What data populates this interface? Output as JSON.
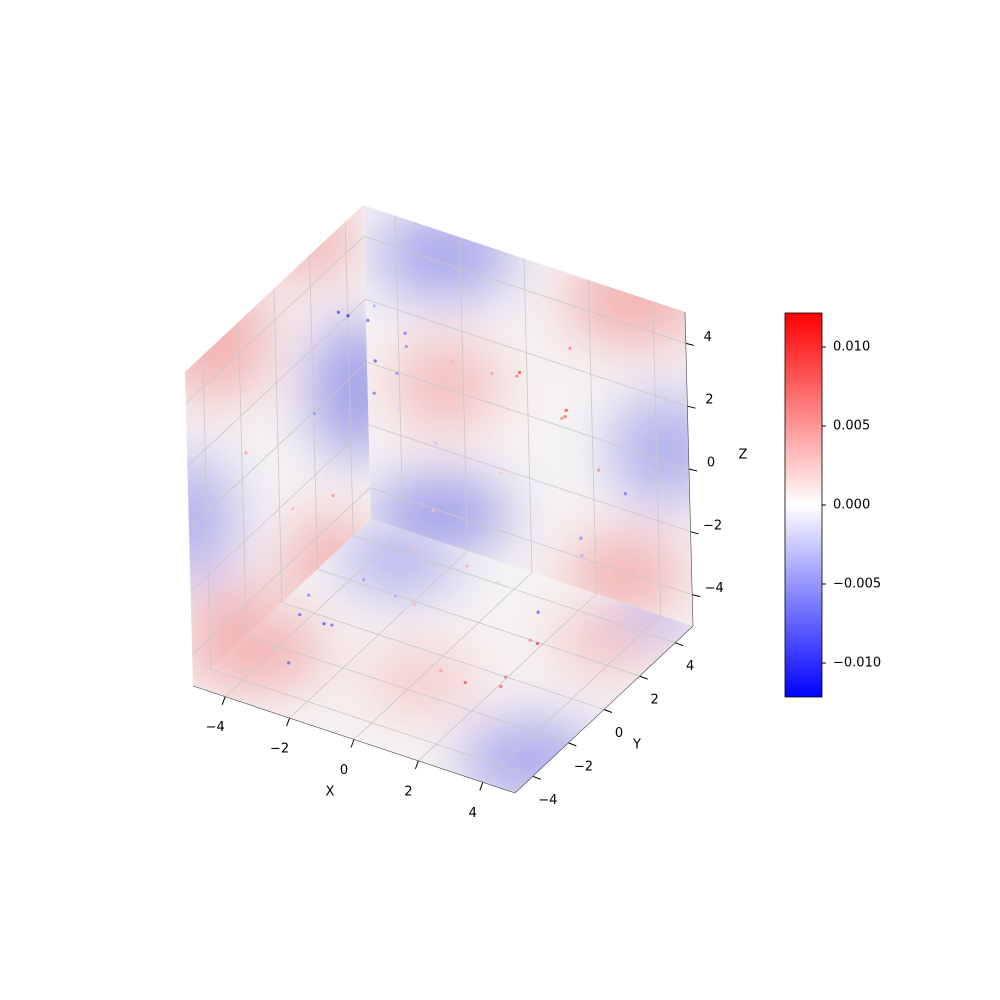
{
  "chart_data": {
    "type": "scatter3d",
    "xlabel": "X",
    "ylabel": "Y",
    "zlabel": "Z",
    "xlim": [
      -5,
      5
    ],
    "ylim": [
      -5,
      5
    ],
    "zlim": [
      -5,
      5
    ],
    "xticks": [
      {
        "value": -4,
        "label": "−4"
      },
      {
        "value": -2,
        "label": "−2"
      },
      0,
      2,
      4
    ],
    "yticks": [
      {
        "value": -4,
        "label": "−4"
      },
      {
        "value": -2,
        "label": "−2"
      },
      0,
      2,
      4
    ],
    "zticks": [
      {
        "value": -4,
        "label": "−4"
      },
      {
        "value": -2,
        "label": "−2"
      },
      0,
      2,
      4
    ],
    "grid": true,
    "colormap": "bwr",
    "clim": [
      -0.01215,
      0.01215
    ],
    "cticks": [
      {
        "value": -0.01,
        "label": "−0.010"
      },
      {
        "value": -0.005,
        "label": "−0.005"
      },
      {
        "value": 0,
        "label": "0.000"
      },
      0.005,
      {
        "value": 0.01,
        "label": "0.010"
      }
    ],
    "x": [
      -4.2,
      -3.8,
      -3.5,
      -3.1,
      -2.7,
      -2.4,
      -4.0,
      -3.3,
      -2.9,
      -3.6,
      -1.5,
      0.2,
      0.8,
      1.4,
      1.9,
      2.4,
      0.5,
      1.1,
      2.8,
      1.6,
      -3.2,
      -2.6,
      -2.1,
      -3.7,
      -1.8,
      -2.9,
      2.1,
      2.7,
      3.2,
      3.6,
      2.4,
      1.8,
      3.9,
      4.1,
      3.4,
      4.3,
      -0.5,
      -1.0,
      0.3,
      1.2,
      -4.3,
      -3.9,
      -4.4,
      0.9,
      2.2,
      -1.2,
      3.0,
      -0.3
    ],
    "y": [
      2.1,
      3.0,
      1.4,
      3.8,
      2.6,
      0.9,
      0.3,
      4.2,
      1.8,
      2.9,
      3.5,
      4.1,
      3.2,
      4.4,
      3.7,
      2.9,
      2.2,
      1.5,
      3.9,
      4.6,
      -2.2,
      -1.5,
      -2.8,
      -0.8,
      -1.1,
      -3.4,
      -2.5,
      -1.6,
      -0.4,
      -2.9,
      0.6,
      -3.3,
      0.9,
      -1.9,
      1.8,
      2.7,
      -0.6,
      0.8,
      -2.0,
      1.0,
      -3.0,
      -1.2,
      1.9,
      -4.1,
      -4.2,
      2.0,
      -3.8,
      -1.6
    ],
    "z": [
      3.4,
      2.8,
      3.9,
      2.2,
      1.7,
      3.1,
      1.2,
      1.5,
      4.2,
      0.6,
      2.0,
      1.8,
      2.6,
      0.7,
      1.3,
      2.1,
      3.0,
      0.4,
      -0.2,
      2.9,
      -3.6,
      -4.1,
      -3.2,
      -3.9,
      -2.6,
      -4.4,
      -3.8,
      -4.2,
      -3.3,
      -2.9,
      -4.0,
      -3.1,
      -0.4,
      -1.2,
      -1.6,
      0.2,
      -1.4,
      -0.9,
      -2.2,
      -2.8,
      1.6,
      -1.0,
      -2.4,
      -0.6,
      2.6,
      0.3,
      0.9,
      3.6
    ],
    "values": [
      -0.009,
      -0.008,
      -0.01,
      -0.007,
      -0.006,
      -0.009,
      -0.005,
      -0.006,
      -0.004,
      -0.007,
      0.004,
      0.007,
      0.009,
      0.006,
      0.008,
      0.01,
      0.005,
      0.003,
      0.006,
      0.007,
      -0.008,
      -0.007,
      -0.009,
      -0.006,
      -0.005,
      -0.008,
      0.009,
      0.008,
      0.01,
      0.007,
      0.006,
      0.005,
      -0.006,
      -0.008,
      -0.004,
      -0.007,
      0.003,
      -0.003,
      0.004,
      -0.002,
      0.005,
      0.004,
      0.006,
      -0.004,
      0.003,
      -0.003,
      0.004,
      -0.002
    ]
  }
}
